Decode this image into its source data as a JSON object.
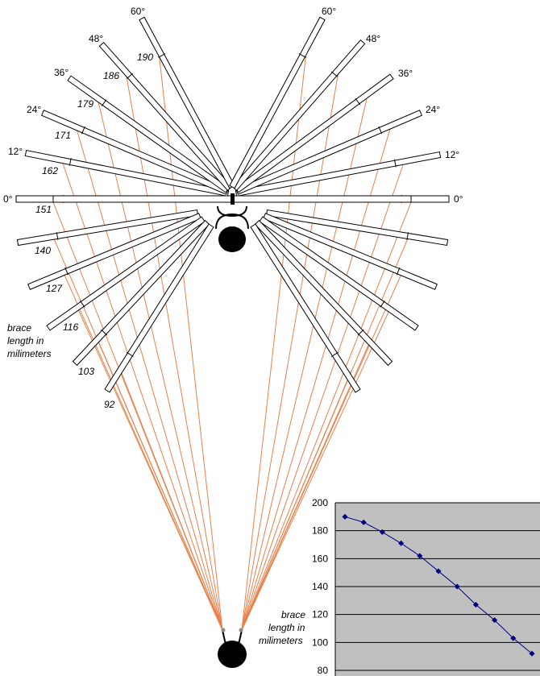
{
  "diagram": {
    "angle_labels_left": [
      "0°",
      "12°",
      "24°",
      "36°",
      "48°",
      "60°"
    ],
    "angle_labels_right": [
      "0°",
      "12°",
      "24°",
      "36°",
      "48°",
      "60°"
    ],
    "upper_lengths": [
      "151",
      "162",
      "171",
      "179",
      "186",
      "190"
    ],
    "lower_lengths": [
      "140",
      "127",
      "116",
      "103",
      "92"
    ],
    "note_lines": [
      "brace",
      "length in",
      "milimeters"
    ]
  },
  "chart_data": {
    "type": "line",
    "ylabel_lines": [
      "brace",
      "length in",
      "milimeters"
    ],
    "ylim": [
      80,
      200
    ],
    "yticks": [
      "200",
      "180",
      "160",
      "140",
      "120",
      "100",
      "80"
    ],
    "grid": true,
    "series": [
      {
        "values": [
          190,
          186,
          179,
          171,
          162,
          151,
          140,
          127,
          116,
          103,
          92
        ]
      }
    ],
    "colors": {
      "background": "#c0c0c0",
      "line": "#000080",
      "grid": "#000000"
    }
  },
  "colors": {
    "ray": "#e8804a",
    "brace_fill": "#ffffff",
    "brace_stroke": "#000000"
  }
}
